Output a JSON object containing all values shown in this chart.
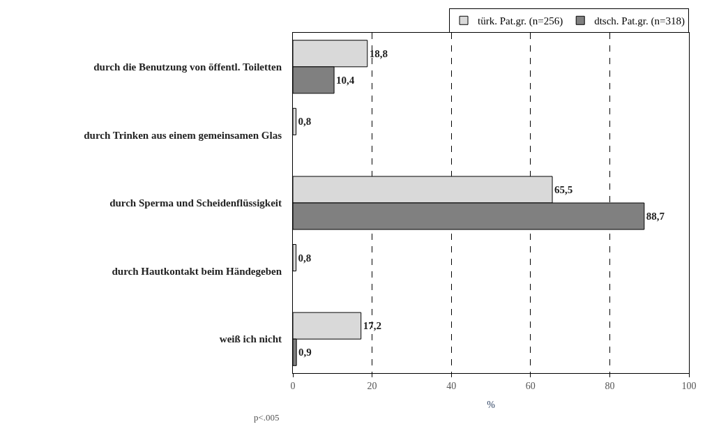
{
  "chart_data": {
    "type": "bar",
    "orientation": "horizontal",
    "categories": [
      "durch die Benutzung von öffentl. Toiletten",
      "durch Trinken aus einem gemeinsamen Glas",
      "durch Sperma und Scheidenflüssigkeit",
      "durch Hautkontakt beim Händegeben",
      "weiß ich nicht"
    ],
    "series": [
      {
        "name": "türk. Pat.gr. (n=256)",
        "color": "#d9d9d9",
        "values": [
          18.8,
          0.8,
          65.5,
          0.8,
          17.2
        ],
        "value_labels": [
          "18,8",
          "0,8",
          "65,5",
          "0,8",
          "17,2"
        ]
      },
      {
        "name": "dtsch. Pat.gr. (n=318)",
        "color": "#808080",
        "values": [
          10.4,
          null,
          88.7,
          null,
          0.9
        ],
        "value_labels": [
          "10,4",
          null,
          "88,7",
          null,
          "0,9"
        ]
      }
    ],
    "xlabel": "%",
    "xlim": [
      0,
      100
    ],
    "xticks": [
      0,
      20,
      40,
      60,
      80,
      100
    ],
    "grid": "x",
    "line_style": "dashed",
    "legend": "top right",
    "annotations": [
      "p<.005"
    ]
  }
}
